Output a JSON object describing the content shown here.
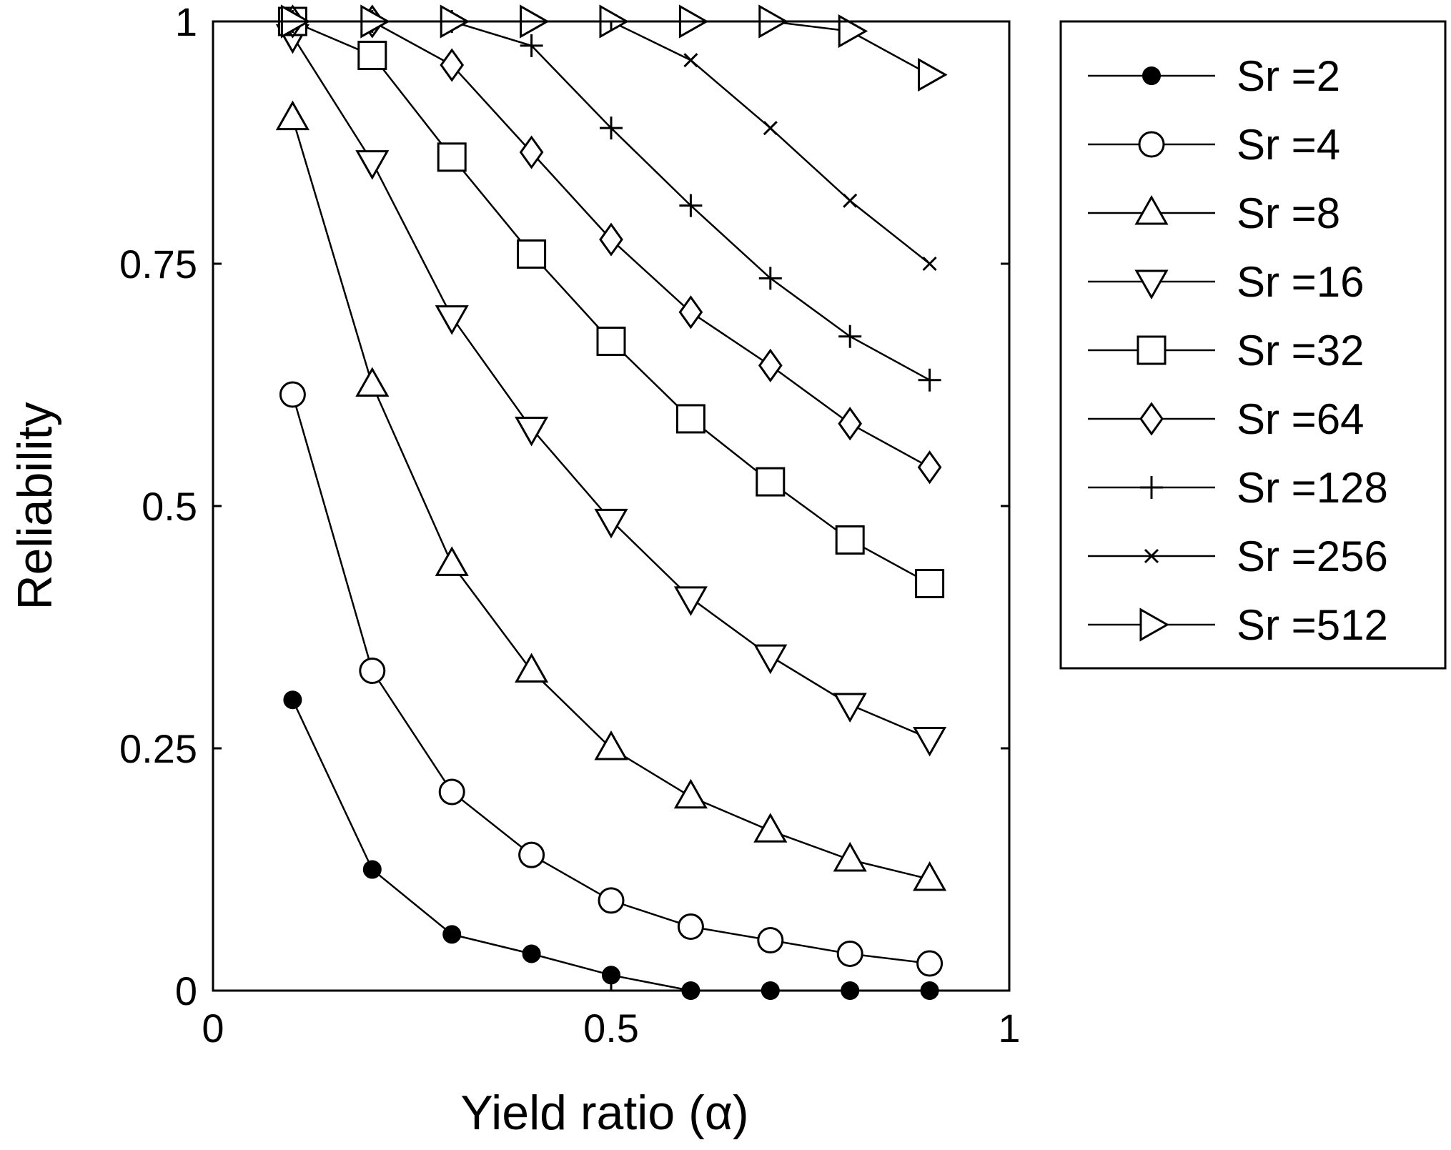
{
  "chart_data": {
    "type": "line",
    "xlabel": "Yield ratio (α)",
    "ylabel": "Reliability",
    "xlim": [
      0,
      1
    ],
    "ylim": [
      0,
      1
    ],
    "xticks": [
      0,
      0.5,
      1
    ],
    "xtick_labels": [
      "0",
      "0.5",
      "1"
    ],
    "yticks": [
      0,
      0.25,
      0.5,
      0.75,
      1
    ],
    "ytick_labels": [
      "0",
      "0.25",
      "0.5",
      "0.75",
      "1"
    ],
    "grid": false,
    "legend_position": "outside-right",
    "x": [
      0.1,
      0.2,
      0.3,
      0.4,
      0.5,
      0.6,
      0.7,
      0.8,
      0.9
    ],
    "series": [
      {
        "name": "Sr =2",
        "marker": "filled-circle",
        "values": [
          0.3,
          0.125,
          0.058,
          0.038,
          0.016,
          0.0,
          0.0,
          0.0,
          0.0
        ]
      },
      {
        "name": "Sr =4",
        "marker": "circle",
        "values": [
          0.615,
          0.33,
          0.205,
          0.14,
          0.093,
          0.066,
          0.052,
          0.038,
          0.028
        ]
      },
      {
        "name": "Sr =8",
        "marker": "triangle-up",
        "values": [
          0.9,
          0.625,
          0.44,
          0.33,
          0.25,
          0.2,
          0.165,
          0.135,
          0.115
        ]
      },
      {
        "name": "Sr =16",
        "marker": "triangle-down",
        "values": [
          0.985,
          0.855,
          0.695,
          0.58,
          0.485,
          0.405,
          0.345,
          0.295,
          0.26
        ]
      },
      {
        "name": "Sr =32",
        "marker": "square",
        "values": [
          1.0,
          0.965,
          0.86,
          0.76,
          0.67,
          0.59,
          0.525,
          0.465,
          0.42
        ]
      },
      {
        "name": "Sr =64",
        "marker": "diamond",
        "values": [
          1.0,
          1.0,
          0.955,
          0.865,
          0.775,
          0.7,
          0.645,
          0.585,
          0.54
        ]
      },
      {
        "name": "Sr =128",
        "marker": "plus",
        "values": [
          1.0,
          1.0,
          1.0,
          0.975,
          0.89,
          0.81,
          0.735,
          0.675,
          0.63
        ]
      },
      {
        "name": "Sr =256",
        "marker": "x",
        "values": [
          1.0,
          1.0,
          1.0,
          1.0,
          1.0,
          0.96,
          0.89,
          0.815,
          0.75
        ]
      },
      {
        "name": "Sr =512",
        "marker": "triangle-right",
        "values": [
          1.0,
          1.0,
          1.0,
          1.0,
          1.0,
          1.0,
          1.0,
          0.99,
          0.945
        ]
      }
    ]
  }
}
